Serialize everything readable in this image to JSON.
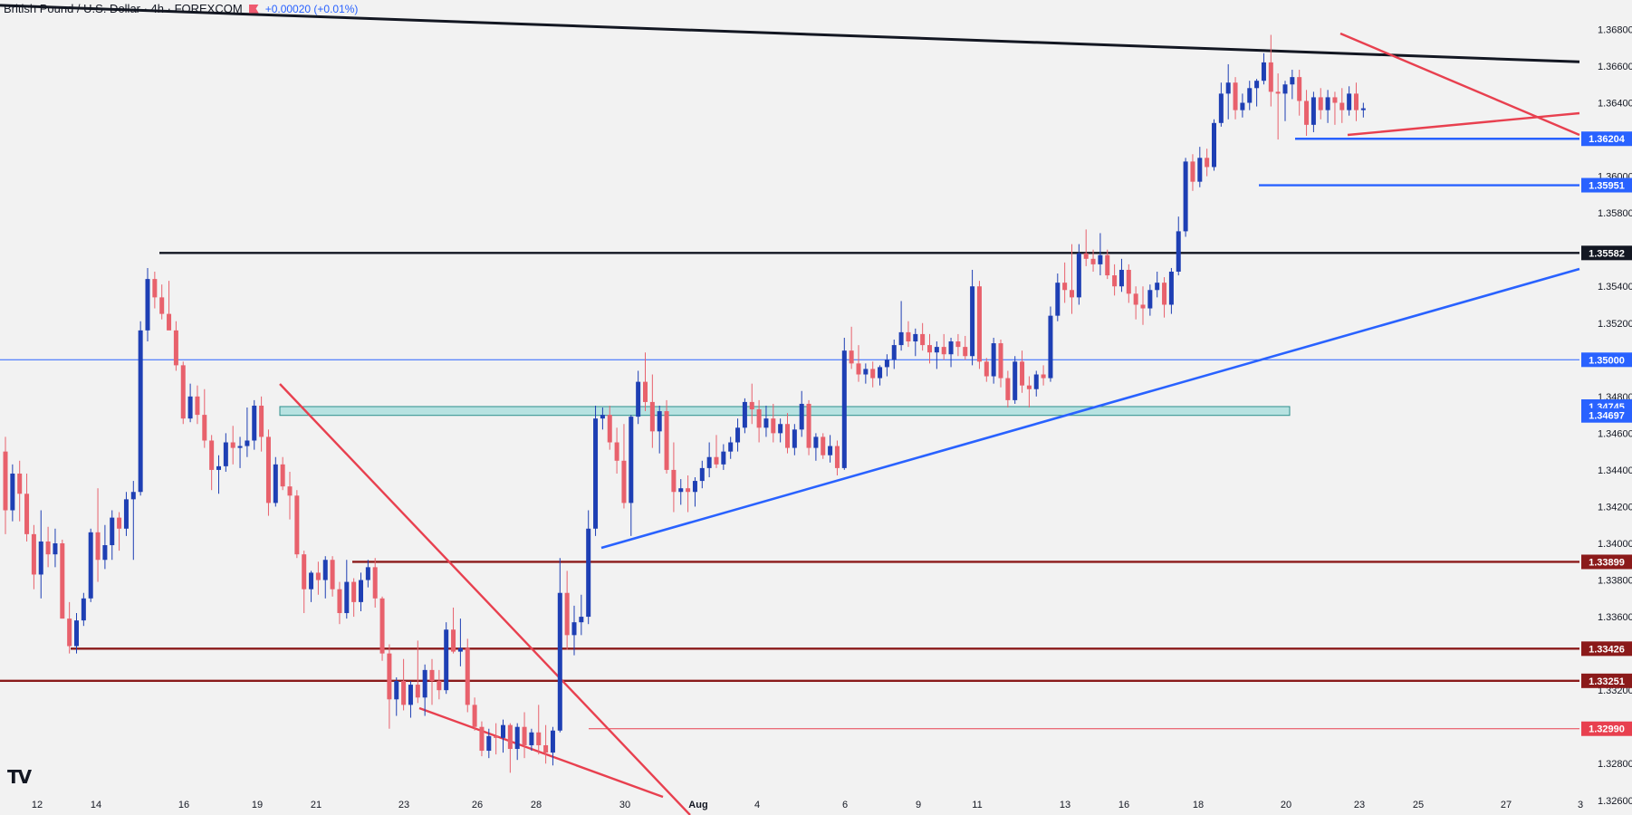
{
  "header": {
    "title": "British Pound / U.S. Dollar · 4h · FOREXCOM",
    "change": "+0.00020 (+0.01%)",
    "flag_icon": "flag-icon"
  },
  "logo": {
    "text": "TV"
  },
  "chart_data": {
    "type": "candlestick",
    "title": "",
    "xlabel": "",
    "ylabel": "",
    "ylim": [
      1.3252,
      1.3696
    ],
    "y_ticks": [
      "1.36800",
      "1.36600",
      "1.36400",
      "1.36000",
      "1.35800",
      "1.35400",
      "1.35200",
      "1.34800",
      "1.34600",
      "1.34400",
      "1.34200",
      "1.34000",
      "1.33800",
      "1.33600",
      "1.33200",
      "1.32800",
      "1.32600"
    ],
    "x_ticks": [
      "12",
      "14",
      "16",
      "19",
      "21",
      "23",
      "26",
      "28",
      "30",
      "Aug",
      "4",
      "6",
      "9",
      "11",
      "13",
      "16",
      "18",
      "20",
      "23",
      "25",
      "27",
      "3"
    ],
    "colors": {
      "up": "#1e3fb4",
      "down": "#e8616c",
      "background": "#f2f2f2"
    },
    "ohlc": [
      [
        1.345,
        1.3458,
        1.3405,
        1.3418
      ],
      [
        1.3418,
        1.3443,
        1.3412,
        1.3438
      ],
      [
        1.3438,
        1.3445,
        1.3412,
        1.3427
      ],
      [
        1.3427,
        1.3438,
        1.3401,
        1.3405
      ],
      [
        1.3405,
        1.341,
        1.3375,
        1.3383
      ],
      [
        1.3383,
        1.3418,
        1.337,
        1.3401
      ],
      [
        1.3401,
        1.3409,
        1.3387,
        1.3394
      ],
      [
        1.3394,
        1.3408,
        1.3387,
        1.34
      ],
      [
        1.34,
        1.3402,
        1.3359,
        1.3359
      ],
      [
        1.3359,
        1.3368,
        1.334,
        1.3344
      ],
      [
        1.3344,
        1.3362,
        1.334,
        1.3358
      ],
      [
        1.3358,
        1.3373,
        1.3355,
        1.337
      ],
      [
        1.337,
        1.3408,
        1.3368,
        1.3406
      ],
      [
        1.3406,
        1.343,
        1.3379,
        1.3391
      ],
      [
        1.3391,
        1.341,
        1.3386,
        1.3399
      ],
      [
        1.3399,
        1.3418,
        1.3391,
        1.3414
      ],
      [
        1.3414,
        1.3417,
        1.3396,
        1.3408
      ],
      [
        1.3408,
        1.3428,
        1.3404,
        1.3424
      ],
      [
        1.3424,
        1.3434,
        1.3391,
        1.3428
      ],
      [
        1.3428,
        1.3521,
        1.3426,
        1.3516
      ],
      [
        1.3516,
        1.355,
        1.351,
        1.3544
      ],
      [
        1.3544,
        1.3548,
        1.3528,
        1.3534
      ],
      [
        1.3534,
        1.3541,
        1.3522,
        1.3525
      ],
      [
        1.3525,
        1.3543,
        1.3517,
        1.3516
      ],
      [
        1.3516,
        1.3521,
        1.3494,
        1.3497
      ],
      [
        1.3497,
        1.3499,
        1.3465,
        1.3468
      ],
      [
        1.3468,
        1.3487,
        1.3466,
        1.348
      ],
      [
        1.348,
        1.3486,
        1.3465,
        1.347
      ],
      [
        1.347,
        1.3484,
        1.3452,
        1.3456
      ],
      [
        1.3456,
        1.3459,
        1.3429,
        1.344
      ],
      [
        1.344,
        1.3448,
        1.3427,
        1.3442
      ],
      [
        1.3442,
        1.346,
        1.3439,
        1.3455
      ],
      [
        1.3455,
        1.3464,
        1.3443,
        1.3452
      ],
      [
        1.3452,
        1.3458,
        1.3441,
        1.3453
      ],
      [
        1.3453,
        1.3474,
        1.3447,
        1.3456
      ],
      [
        1.3456,
        1.3478,
        1.3451,
        1.3475
      ],
      [
        1.3475,
        1.348,
        1.345,
        1.3458
      ],
      [
        1.3458,
        1.3462,
        1.3415,
        1.3422
      ],
      [
        1.3422,
        1.3447,
        1.342,
        1.3443
      ],
      [
        1.3443,
        1.3447,
        1.3429,
        1.3431
      ],
      [
        1.3431,
        1.3439,
        1.3413,
        1.3426
      ],
      [
        1.3426,
        1.3429,
        1.3392,
        1.3394
      ],
      [
        1.3394,
        1.3396,
        1.3362,
        1.3375
      ],
      [
        1.3375,
        1.3385,
        1.3368,
        1.3384
      ],
      [
        1.3384,
        1.339,
        1.3372,
        1.338
      ],
      [
        1.338,
        1.3393,
        1.337,
        1.3391
      ],
      [
        1.3391,
        1.3393,
        1.3371,
        1.3375
      ],
      [
        1.3375,
        1.3379,
        1.3356,
        1.3362
      ],
      [
        1.3362,
        1.3391,
        1.3359,
        1.3379
      ],
      [
        1.3379,
        1.3381,
        1.336,
        1.3368
      ],
      [
        1.3368,
        1.3384,
        1.3363,
        1.338
      ],
      [
        1.338,
        1.3391,
        1.3376,
        1.3387
      ],
      [
        1.3387,
        1.3392,
        1.3365,
        1.337
      ],
      [
        1.337,
        1.3371,
        1.3336,
        1.334
      ],
      [
        1.334,
        1.3345,
        1.3299,
        1.3315
      ],
      [
        1.3315,
        1.3327,
        1.3306,
        1.3325
      ],
      [
        1.3325,
        1.3337,
        1.3309,
        1.3312
      ],
      [
        1.3312,
        1.3325,
        1.3305,
        1.3323
      ],
      [
        1.3323,
        1.3347,
        1.3313,
        1.3316
      ],
      [
        1.3316,
        1.3334,
        1.3306,
        1.3331
      ],
      [
        1.3331,
        1.3337,
        1.3312,
        1.3325
      ],
      [
        1.3325,
        1.3331,
        1.3315,
        1.332
      ],
      [
        1.332,
        1.3357,
        1.3318,
        1.3353
      ],
      [
        1.3353,
        1.3365,
        1.334,
        1.3341
      ],
      [
        1.3341,
        1.3359,
        1.3333,
        1.3343
      ],
      [
        1.3343,
        1.3348,
        1.3308,
        1.3312
      ],
      [
        1.3312,
        1.3316,
        1.3298,
        1.33
      ],
      [
        1.33,
        1.3303,
        1.3284,
        1.3287
      ],
      [
        1.3287,
        1.3299,
        1.3283,
        1.3295
      ],
      [
        1.3295,
        1.3302,
        1.3285,
        1.3294
      ],
      [
        1.3294,
        1.3304,
        1.3286,
        1.3301
      ],
      [
        1.3301,
        1.3302,
        1.3275,
        1.3288
      ],
      [
        1.3288,
        1.3302,
        1.3282,
        1.33
      ],
      [
        1.33,
        1.3308,
        1.3283,
        1.329
      ],
      [
        1.329,
        1.3299,
        1.3287,
        1.3297
      ],
      [
        1.3297,
        1.3312,
        1.3285,
        1.329
      ],
      [
        1.329,
        1.3301,
        1.328,
        1.3286
      ],
      [
        1.3286,
        1.33,
        1.3279,
        1.3298
      ],
      [
        1.3298,
        1.3392,
        1.3297,
        1.3373
      ],
      [
        1.3373,
        1.3385,
        1.3342,
        1.335
      ],
      [
        1.335,
        1.3366,
        1.3339,
        1.3357
      ],
      [
        1.3357,
        1.3372,
        1.335,
        1.336
      ],
      [
        1.336,
        1.3418,
        1.3356,
        1.3408
      ],
      [
        1.3408,
        1.3475,
        1.3404,
        1.3468
      ],
      [
        1.3468,
        1.3474,
        1.3462,
        1.347
      ],
      [
        1.347,
        1.3475,
        1.3451,
        1.3455
      ],
      [
        1.3455,
        1.3463,
        1.3438,
        1.3445
      ],
      [
        1.3445,
        1.3465,
        1.3419,
        1.3422
      ],
      [
        1.3422,
        1.347,
        1.3404,
        1.3469
      ],
      [
        1.3469,
        1.3494,
        1.3465,
        1.3488
      ],
      [
        1.3488,
        1.3504,
        1.3472,
        1.3477
      ],
      [
        1.3477,
        1.3492,
        1.3452,
        1.3461
      ],
      [
        1.3461,
        1.3475,
        1.3449,
        1.3472
      ],
      [
        1.3472,
        1.3478,
        1.3438,
        1.344
      ],
      [
        1.344,
        1.3455,
        1.3417,
        1.3428
      ],
      [
        1.3428,
        1.3435,
        1.3421,
        1.343
      ],
      [
        1.343,
        1.3437,
        1.3417,
        1.3428
      ],
      [
        1.3428,
        1.3436,
        1.342,
        1.3434
      ],
      [
        1.3434,
        1.3445,
        1.343,
        1.3441
      ],
      [
        1.3441,
        1.3455,
        1.3436,
        1.3447
      ],
      [
        1.3447,
        1.3459,
        1.3441,
        1.3443
      ],
      [
        1.3443,
        1.3454,
        1.344,
        1.345
      ],
      [
        1.345,
        1.3458,
        1.3446,
        1.3455
      ],
      [
        1.3455,
        1.3468,
        1.345,
        1.3463
      ],
      [
        1.3463,
        1.3479,
        1.346,
        1.3477
      ],
      [
        1.3477,
        1.3487,
        1.3465,
        1.3473
      ],
      [
        1.3473,
        1.3478,
        1.3455,
        1.3463
      ],
      [
        1.3463,
        1.3475,
        1.3458,
        1.3468
      ],
      [
        1.3468,
        1.3476,
        1.3455,
        1.346
      ],
      [
        1.346,
        1.3468,
        1.3455,
        1.3465
      ],
      [
        1.3465,
        1.3471,
        1.3449,
        1.3452
      ],
      [
        1.3452,
        1.3465,
        1.3448,
        1.3462
      ],
      [
        1.3462,
        1.3483,
        1.3458,
        1.3476
      ],
      [
        1.3476,
        1.3478,
        1.3448,
        1.3452
      ],
      [
        1.3452,
        1.346,
        1.3445,
        1.3458
      ],
      [
        1.3458,
        1.346,
        1.3446,
        1.3448
      ],
      [
        1.3448,
        1.3459,
        1.3444,
        1.3453
      ],
      [
        1.3453,
        1.3456,
        1.3437,
        1.3441
      ],
      [
        1.3441,
        1.3512,
        1.344,
        1.3505
      ],
      [
        1.3505,
        1.3518,
        1.3495,
        1.3498
      ],
      [
        1.3498,
        1.3508,
        1.3488,
        1.3492
      ],
      [
        1.3492,
        1.3498,
        1.3487,
        1.3495
      ],
      [
        1.3495,
        1.3499,
        1.3485,
        1.349
      ],
      [
        1.349,
        1.3497,
        1.3486,
        1.3496
      ],
      [
        1.3496,
        1.3503,
        1.3491,
        1.35
      ],
      [
        1.35,
        1.3511,
        1.3495,
        1.3508
      ],
      [
        1.3508,
        1.3532,
        1.3505,
        1.3515
      ],
      [
        1.3515,
        1.3521,
        1.3507,
        1.351
      ],
      [
        1.351,
        1.3517,
        1.3502,
        1.3514
      ],
      [
        1.3514,
        1.352,
        1.3505,
        1.3508
      ],
      [
        1.3508,
        1.3514,
        1.3498,
        1.3504
      ],
      [
        1.3504,
        1.351,
        1.3495,
        1.3507
      ],
      [
        1.3507,
        1.3514,
        1.35,
        1.3503
      ],
      [
        1.3503,
        1.3512,
        1.3496,
        1.351
      ],
      [
        1.351,
        1.3514,
        1.3502,
        1.3507
      ],
      [
        1.3507,
        1.3513,
        1.35,
        1.3502
      ],
      [
        1.3502,
        1.3549,
        1.3497,
        1.354
      ],
      [
        1.354,
        1.3543,
        1.3495,
        1.3499
      ],
      [
        1.3499,
        1.3501,
        1.3488,
        1.3491
      ],
      [
        1.3491,
        1.3512,
        1.3487,
        1.3509
      ],
      [
        1.3509,
        1.3511,
        1.3485,
        1.349
      ],
      [
        1.349,
        1.3494,
        1.3474,
        1.3478
      ],
      [
        1.3478,
        1.3502,
        1.3476,
        1.3499
      ],
      [
        1.3499,
        1.3505,
        1.3482,
        1.3486
      ],
      [
        1.3486,
        1.3491,
        1.3474,
        1.3484
      ],
      [
        1.3484,
        1.3494,
        1.348,
        1.3492
      ],
      [
        1.3492,
        1.3497,
        1.3486,
        1.349
      ],
      [
        1.349,
        1.3529,
        1.3488,
        1.3524
      ],
      [
        1.3524,
        1.3547,
        1.3521,
        1.3542
      ],
      [
        1.3542,
        1.3553,
        1.3531,
        1.3538
      ],
      [
        1.3538,
        1.3563,
        1.3525,
        1.3534
      ],
      [
        1.3534,
        1.3563,
        1.353,
        1.3558
      ],
      [
        1.3558,
        1.3571,
        1.3551,
        1.3555
      ],
      [
        1.3555,
        1.356,
        1.3548,
        1.3552
      ],
      [
        1.3552,
        1.3569,
        1.3546,
        1.3557
      ],
      [
        1.3557,
        1.356,
        1.3544,
        1.3546
      ],
      [
        1.3546,
        1.3552,
        1.3535,
        1.354
      ],
      [
        1.354,
        1.3555,
        1.3537,
        1.3549
      ],
      [
        1.3549,
        1.3552,
        1.3531,
        1.3536
      ],
      [
        1.3536,
        1.354,
        1.3522,
        1.353
      ],
      [
        1.353,
        1.354,
        1.3519,
        1.3528
      ],
      [
        1.3528,
        1.3541,
        1.3524,
        1.3538
      ],
      [
        1.3538,
        1.3548,
        1.3534,
        1.3542
      ],
      [
        1.3542,
        1.3545,
        1.3523,
        1.353
      ],
      [
        1.353,
        1.355,
        1.3525,
        1.3548
      ],
      [
        1.3548,
        1.3578,
        1.3546,
        1.357
      ],
      [
        1.357,
        1.361,
        1.3567,
        1.3608
      ],
      [
        1.3608,
        1.3612,
        1.3592,
        1.3597
      ],
      [
        1.3597,
        1.3616,
        1.3594,
        1.361
      ],
      [
        1.361,
        1.3615,
        1.36,
        1.3605
      ],
      [
        1.3605,
        1.3631,
        1.3603,
        1.3629
      ],
      [
        1.3629,
        1.3651,
        1.3627,
        1.3645
      ],
      [
        1.3645,
        1.3661,
        1.3631,
        1.3651
      ],
      [
        1.3651,
        1.3654,
        1.3631,
        1.3636
      ],
      [
        1.3636,
        1.3645,
        1.3632,
        1.364
      ],
      [
        1.364,
        1.3652,
        1.3636,
        1.3648
      ],
      [
        1.3648,
        1.3653,
        1.3638,
        1.3652
      ],
      [
        1.3652,
        1.3667,
        1.365,
        1.3662
      ],
      [
        1.3662,
        1.3677,
        1.3638,
        1.3646
      ],
      [
        1.3646,
        1.3656,
        1.362,
        1.3645
      ],
      [
        1.3645,
        1.3652,
        1.363,
        1.365
      ],
      [
        1.365,
        1.3658,
        1.3642,
        1.3654
      ],
      [
        1.3654,
        1.3658,
        1.3633,
        1.3641
      ],
      [
        1.3641,
        1.3647,
        1.3622,
        1.3628
      ],
      [
        1.3628,
        1.3646,
        1.3624,
        1.3643
      ],
      [
        1.3643,
        1.3648,
        1.3631,
        1.3636
      ],
      [
        1.3636,
        1.3647,
        1.3629,
        1.3643
      ],
      [
        1.3643,
        1.3646,
        1.3628,
        1.364
      ],
      [
        1.364,
        1.3648,
        1.3629,
        1.3636
      ],
      [
        1.3636,
        1.3649,
        1.3633,
        1.3645
      ],
      [
        1.3645,
        1.3651,
        1.363,
        1.3636
      ],
      [
        1.3636,
        1.364,
        1.3632,
        1.3637
      ]
    ],
    "price_labels": [
      {
        "text": "1.36204",
        "value": 1.36204,
        "color": "#2962ff"
      },
      {
        "text": "1.35951",
        "value": 1.35951,
        "color": "#2962ff"
      },
      {
        "text": "1.35582",
        "value": 1.35582,
        "color": "#131722"
      },
      {
        "text": "1.35000",
        "value": 1.35,
        "color": "#2962ff"
      },
      {
        "text": "1.34745",
        "value": 1.34745,
        "color": "#2962ff"
      },
      {
        "text": "1.34697",
        "value": 1.34697,
        "color": "#2962ff"
      },
      {
        "text": "1.33899",
        "value": 1.33899,
        "color": "#8b1a1a"
      },
      {
        "text": "1.33426",
        "value": 1.33426,
        "color": "#8b1a1a"
      },
      {
        "text": "1.33251",
        "value": 1.33251,
        "color": "#8b1a1a"
      },
      {
        "text": "1.32990",
        "value": 1.3299,
        "color": "#e8404f"
      }
    ],
    "annotations": {
      "black_resistance_trendline": {
        "from": [
          "start",
          1.36931
        ],
        "to": [
          "end",
          1.36623
        ],
        "color": "#131722"
      },
      "horizontal_levels": [
        {
          "value": 1.36204,
          "from": "20",
          "color": "#2962ff"
        },
        {
          "value": 1.35951,
          "from": "19",
          "color": "#2962ff"
        },
        {
          "value": 1.35582,
          "from": "15",
          "color": "#131722"
        },
        {
          "value": 1.35,
          "from": "start",
          "color": "#2962ff"
        },
        {
          "value": 1.33899,
          "from": "21",
          "color": "#8b1a1a"
        },
        {
          "value": 1.33426,
          "from": "13",
          "color": "#8b1a1a"
        },
        {
          "value": 1.33251,
          "from": "start",
          "color": "#8b1a1a"
        },
        {
          "value": 1.3299,
          "from": "29",
          "color": "#e8404f"
        }
      ],
      "support_zone": {
        "from": 1.34697,
        "to": 1.34745,
        "color": "#86d5d3"
      },
      "blue_support_trendline": {
        "color": "#2962ff"
      },
      "red_falling_wedge": {
        "color": "#e8404f"
      },
      "red_symmetrical_triangle": {
        "color": "#e8404f"
      }
    }
  }
}
